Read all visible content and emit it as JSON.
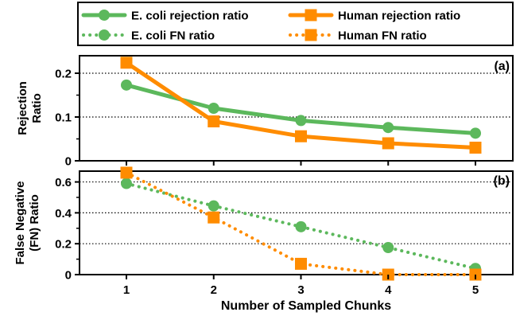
{
  "chart_data": [
    {
      "type": "line",
      "panel_label": "(a)",
      "ylabel": [
        "Rejection",
        "Ratio"
      ],
      "ylim": [
        0,
        0.24
      ],
      "yticks": [
        "0",
        "0.1",
        "0.2"
      ],
      "ytick_values": [
        0,
        0.1,
        0.2
      ],
      "grid": "horizontal-dotted",
      "x": [
        1,
        2,
        3,
        4,
        5
      ],
      "series": [
        {
          "name": "E. coli rejection ratio",
          "color": "#5cb85c",
          "style": "solid",
          "marker": "circle",
          "values": [
            0.173,
            0.12,
            0.092,
            0.076,
            0.063
          ]
        },
        {
          "name": "Human rejection ratio",
          "color": "#ff8c00",
          "style": "solid",
          "marker": "square",
          "values": [
            0.224,
            0.09,
            0.056,
            0.04,
            0.03
          ]
        }
      ]
    },
    {
      "type": "line",
      "panel_label": "(b)",
      "ylabel": [
        "False Negative",
        "(FN) Ratio"
      ],
      "xlabel": "Number of Sampled Chunks",
      "ylim": [
        0,
        0.67
      ],
      "yticks": [
        "0",
        "0.2",
        "0.4",
        "0.6"
      ],
      "ytick_values": [
        0,
        0.2,
        0.4,
        0.6
      ],
      "xticks": [
        "1",
        "2",
        "3",
        "4",
        "5"
      ],
      "grid": "horizontal-dotted",
      "x": [
        1,
        2,
        3,
        4,
        5
      ],
      "series": [
        {
          "name": "E. coli FN ratio",
          "color": "#5cb85c",
          "style": "dotted",
          "marker": "circle",
          "values": [
            0.59,
            0.445,
            0.31,
            0.175,
            0.04
          ]
        },
        {
          "name": "Human FN ratio",
          "color": "#ff8c00",
          "style": "dotted",
          "marker": "square",
          "values": [
            0.66,
            0.37,
            0.07,
            0.0,
            0.0
          ]
        }
      ]
    }
  ],
  "legend": {
    "placement": "top",
    "entries": [
      {
        "label": "E. coli rejection ratio",
        "color": "#5cb85c",
        "style": "solid",
        "marker": "circle"
      },
      {
        "label": "Human rejection ratio",
        "color": "#ff8c00",
        "style": "solid",
        "marker": "square"
      },
      {
        "label": "E. coli FN ratio",
        "color": "#5cb85c",
        "style": "dotted",
        "marker": "circle"
      },
      {
        "label": "Human FN ratio",
        "color": "#ff8c00",
        "style": "dotted",
        "marker": "square"
      }
    ]
  }
}
